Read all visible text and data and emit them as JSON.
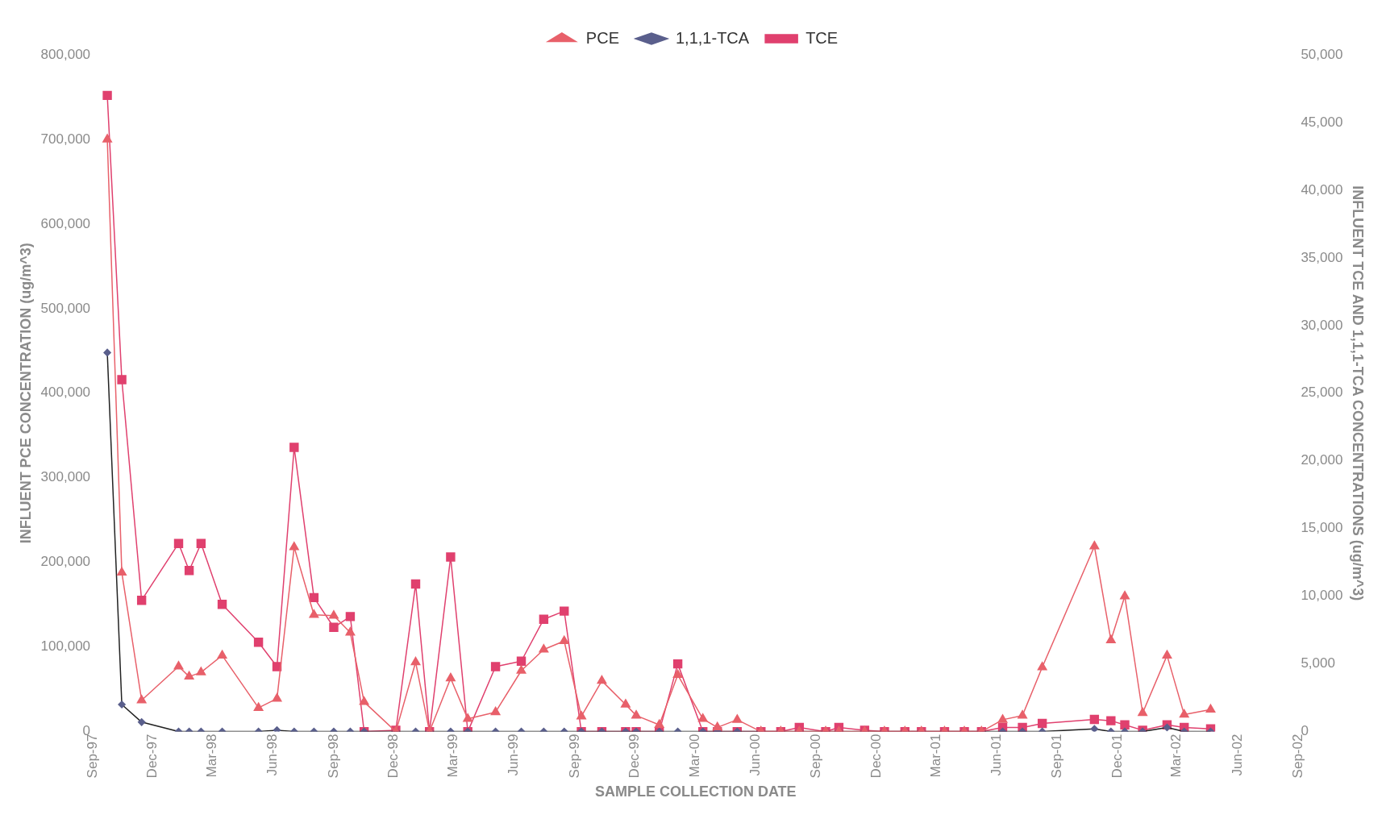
{
  "chart_data": {
    "type": "line",
    "xlabel": "SAMPLE COLLECTION DATE",
    "ylabel": "INFLUENT PCE CONCENTRATION (ug/m^3)",
    "y2label": "INFLUENT TCE AND 1,1,1-TCA CONCENTRATIONS (ug/m^3)",
    "x": [
      "1997-09-23",
      "1997-10-15",
      "1997-11-14",
      "1998-01-09",
      "1998-01-25",
      "1998-02-12",
      "1998-03-16",
      "1998-05-10",
      "1998-06-07",
      "1998-07-03",
      "1998-08-02",
      "1998-09-01",
      "1998-09-26",
      "1998-10-17",
      "1998-12-04",
      "1999-01-03",
      "1999-01-24",
      "1999-02-25",
      "1999-03-23",
      "1999-05-04",
      "1999-06-12",
      "1999-07-16",
      "1999-08-16",
      "1999-09-11",
      "1999-10-12",
      "1999-11-17",
      "1999-12-03",
      "2000-01-07",
      "2000-02-04",
      "2000-03-13",
      "2000-04-04",
      "2000-05-04",
      "2000-06-09",
      "2000-07-09",
      "2000-08-06",
      "2000-09-15",
      "2000-10-05",
      "2000-11-13",
      "2000-12-13",
      "2001-01-13",
      "2001-02-07",
      "2001-03-14",
      "2001-04-13",
      "2001-05-09",
      "2001-06-10",
      "2001-07-10",
      "2001-08-09",
      "2001-10-27",
      "2001-11-21",
      "2001-12-12",
      "2002-01-08",
      "2002-02-14",
      "2002-03-12",
      "2002-04-21"
    ],
    "series": [
      {
        "name": "PCE",
        "color": "#e8606a",
        "marker": "triangle",
        "values": [
          700000,
          188000,
          37000,
          77000,
          65000,
          70000,
          90000,
          28000,
          39000,
          218000,
          138000,
          137000,
          117000,
          35000,
          0,
          82000,
          0,
          63000,
          15000,
          23000,
          72000,
          97000,
          107000,
          18000,
          60000,
          32000,
          19000,
          8000,
          67000,
          15000,
          5000,
          14000,
          0,
          0,
          0,
          0,
          0,
          0,
          0,
          0,
          0,
          0,
          0,
          0,
          14000,
          19000,
          76000,
          219000,
          108000,
          160000,
          22000,
          90000,
          20000,
          26000
        ]
      },
      {
        "name": "1,1,1-TCA",
        "color": "#5a5f8c",
        "marker": "diamond",
        "axis": "y2",
        "values": [
          28000,
          2000,
          700,
          0,
          0,
          0,
          0,
          0,
          100,
          0,
          0,
          0,
          0,
          0,
          0,
          0,
          0,
          0,
          0,
          0,
          0,
          0,
          0,
          0,
          0,
          0,
          0,
          0,
          0,
          0,
          0,
          0,
          0,
          0,
          0,
          0,
          0,
          0,
          0,
          0,
          0,
          0,
          0,
          0,
          0,
          0,
          0,
          200,
          0,
          0,
          0,
          300,
          0,
          0
        ]
      },
      {
        "name": "TCE",
        "color": "#e0406e",
        "marker": "square",
        "axis": "y2",
        "values": [
          47000,
          26000,
          9700,
          13900,
          11900,
          13900,
          9400,
          6600,
          4800,
          21000,
          9900,
          7700,
          8500,
          0,
          100,
          10900,
          0,
          12900,
          0,
          4800,
          5200,
          8300,
          8900,
          0,
          0,
          0,
          0,
          0,
          5000,
          0,
          0,
          0,
          0,
          0,
          300,
          0,
          300,
          100,
          0,
          0,
          0,
          0,
          0,
          0,
          300,
          300,
          600,
          900,
          800,
          500,
          100,
          500,
          300,
          200
        ]
      }
    ],
    "xlim": [
      "1997-09-01",
      "2002-09-01"
    ],
    "xticks": [
      {
        "value": "1997-09-01",
        "label": "Sep-97"
      },
      {
        "value": "1997-12-01",
        "label": "Dec-97"
      },
      {
        "value": "1998-03-01",
        "label": "Mar-98"
      },
      {
        "value": "1998-06-01",
        "label": "Jun-98"
      },
      {
        "value": "1998-09-01",
        "label": "Sep-98"
      },
      {
        "value": "1998-12-01",
        "label": "Dec-98"
      },
      {
        "value": "1999-03-01",
        "label": "Mar-99"
      },
      {
        "value": "1999-06-01",
        "label": "Jun-99"
      },
      {
        "value": "1999-09-01",
        "label": "Sep-99"
      },
      {
        "value": "1999-12-01",
        "label": "Dec-99"
      },
      {
        "value": "2000-03-01",
        "label": "Mar-00"
      },
      {
        "value": "2000-06-01",
        "label": "Jun-00"
      },
      {
        "value": "2000-09-01",
        "label": "Sep-00"
      },
      {
        "value": "2000-12-01",
        "label": "Dec-00"
      },
      {
        "value": "2001-03-01",
        "label": "Mar-01"
      },
      {
        "value": "2001-06-01",
        "label": "Jun-01"
      },
      {
        "value": "2001-09-01",
        "label": "Sep-01"
      },
      {
        "value": "2001-12-01",
        "label": "Dec-01"
      },
      {
        "value": "2002-03-01",
        "label": "Mar-02"
      },
      {
        "value": "2002-06-01",
        "label": "Jun-02"
      },
      {
        "value": "2002-09-01",
        "label": "Sep-02"
      }
    ],
    "ylim": [
      0,
      800000
    ],
    "yticks": [
      0,
      {
        "value": 100000,
        "label": "100,000"
      },
      {
        "value": 200000,
        "label": "200,000"
      },
      {
        "value": 300000,
        "label": "300,000"
      },
      {
        "value": 400000,
        "label": "400,000"
      },
      {
        "value": 500000,
        "label": "500,000"
      },
      {
        "value": 600000,
        "label": "600,000"
      },
      {
        "value": 700000,
        "label": "700,000"
      },
      {
        "value": 800000,
        "label": "800,000"
      }
    ],
    "y2lim": [
      0,
      50000
    ],
    "y2ticks": [
      0,
      {
        "value": 5000,
        "label": "5,000"
      },
      {
        "value": 10000,
        "label": "10,000"
      },
      {
        "value": 15000,
        "label": "15,000"
      },
      {
        "value": 20000,
        "label": "20,000"
      },
      {
        "value": 25000,
        "label": "25,000"
      },
      {
        "value": 30000,
        "label": "30,000"
      },
      {
        "value": 35000,
        "label": "35,000"
      },
      {
        "value": 40000,
        "label": "40,000"
      },
      {
        "value": 45000,
        "label": "45,000"
      },
      {
        "value": 50000,
        "label": "50,000"
      }
    ],
    "grid": false,
    "legend": "top",
    "line_style": "solid"
  }
}
